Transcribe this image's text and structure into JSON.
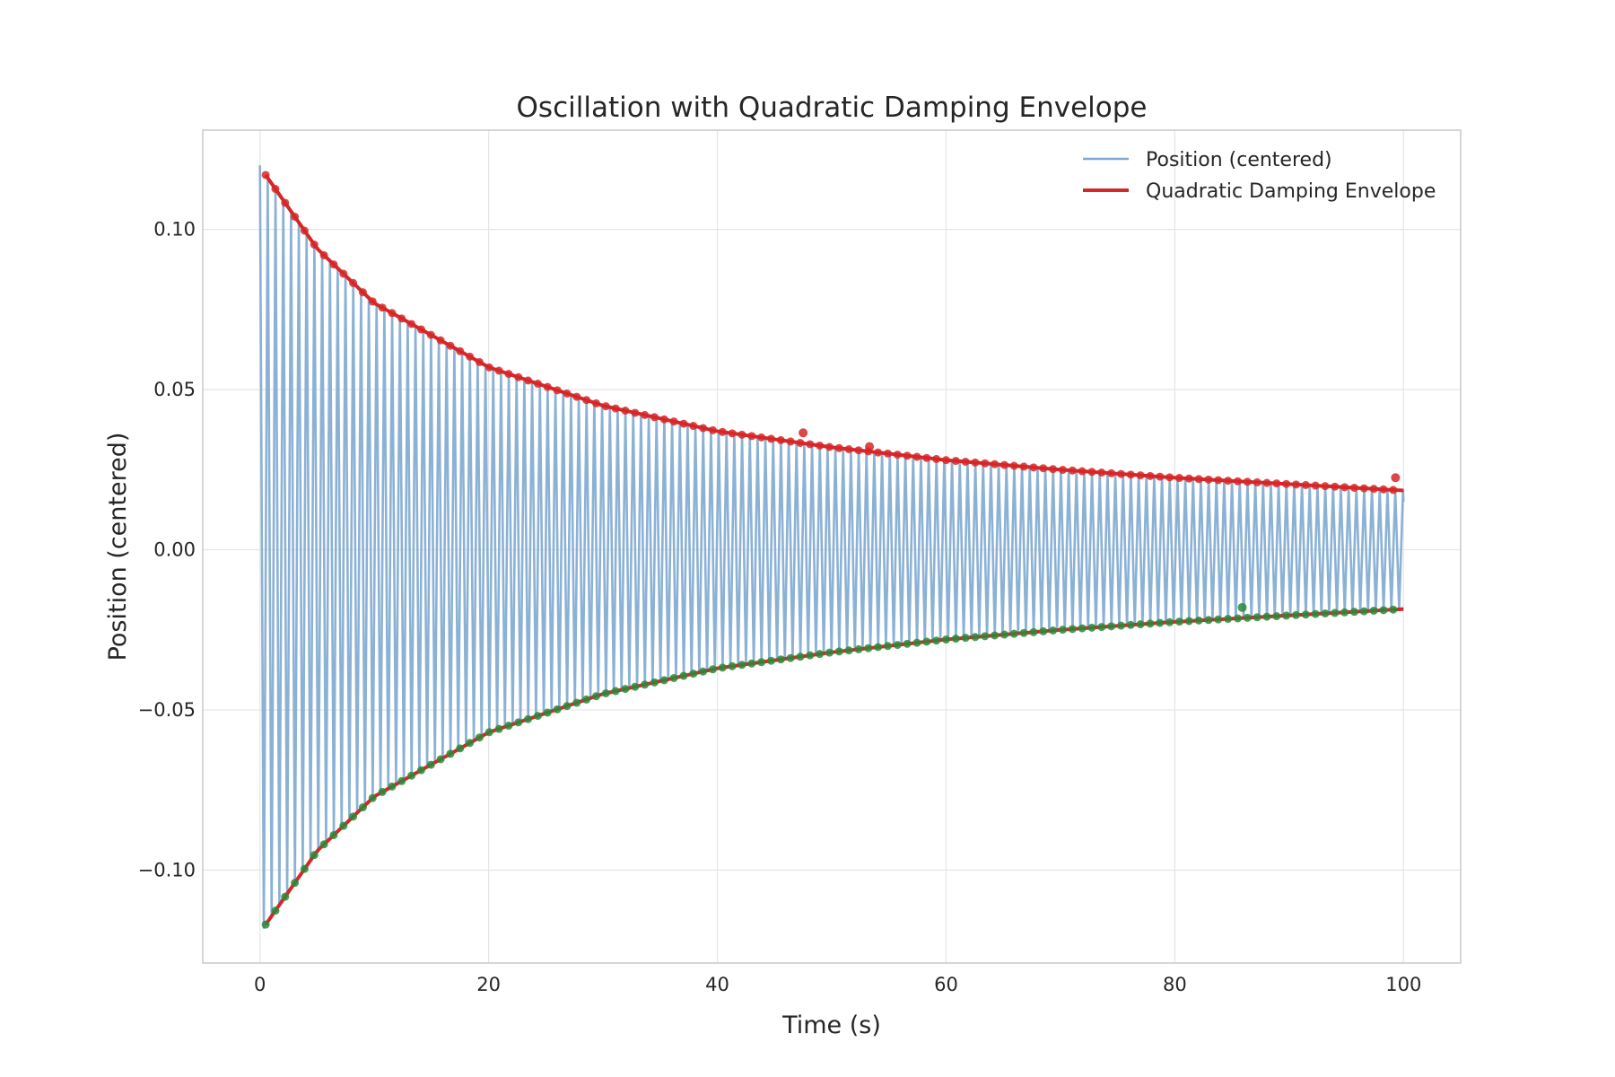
{
  "chart_data": {
    "type": "line",
    "title": "Oscillation with Quadratic Damping Envelope",
    "xlabel": "Time (s)",
    "ylabel": "Position (centered)",
    "xlim": [
      -5,
      105
    ],
    "ylim": [
      -0.129,
      0.131
    ],
    "x_ticks": [
      0,
      20,
      40,
      60,
      80,
      100
    ],
    "x_tick_labels": [
      "0",
      "20",
      "40",
      "60",
      "80",
      "100"
    ],
    "y_ticks": [
      0.1,
      0.05,
      0.0,
      -0.05,
      -0.1
    ],
    "y_tick_labels": [
      "0.10",
      "0.05",
      "0.00",
      "−0.05",
      "−0.10"
    ],
    "grid": true,
    "legend_position": "top-right",
    "series": [
      {
        "name": "Position (centered)",
        "kind": "oscillation",
        "color": "#7ea9d0",
        "amplitude_start": 0.12,
        "amplitude_end": 0.018,
        "period_s": 0.68,
        "t_start": 0,
        "t_end": 100,
        "final_value": 0.015
      },
      {
        "name": "Quadratic Damping Envelope",
        "kind": "envelope",
        "color": "#d62728",
        "upper": {
          "x": [
            0.5,
            5,
            10,
            20,
            30,
            40,
            50,
            60,
            70,
            80,
            90,
            100
          ],
          "y": [
            0.117,
            0.094,
            0.077,
            0.057,
            0.045,
            0.037,
            0.032,
            0.028,
            0.025,
            0.0225,
            0.0205,
            0.0185
          ]
        },
        "lower": {
          "x": [
            0.5,
            5,
            10,
            20,
            30,
            40,
            50,
            60,
            70,
            80,
            90,
            100
          ],
          "y": [
            -0.117,
            -0.094,
            -0.077,
            -0.057,
            -0.045,
            -0.037,
            -0.032,
            -0.028,
            -0.025,
            -0.0225,
            -0.0205,
            -0.0185
          ]
        }
      }
    ],
    "peak_markers": {
      "upper_color": "#d62728",
      "lower_color": "#2a8a3a",
      "upper_outliers": [
        {
          "x": 47.5,
          "y": 0.0365
        },
        {
          "x": 53.3,
          "y": 0.0322
        },
        {
          "x": 99.3,
          "y": 0.0225
        }
      ],
      "lower_outliers": [
        {
          "x": 85.9,
          "y": -0.018
        }
      ]
    },
    "colors": {
      "axes_frame": "#c8c8c8",
      "grid": "#e6e6e6",
      "text": "#262626"
    }
  }
}
